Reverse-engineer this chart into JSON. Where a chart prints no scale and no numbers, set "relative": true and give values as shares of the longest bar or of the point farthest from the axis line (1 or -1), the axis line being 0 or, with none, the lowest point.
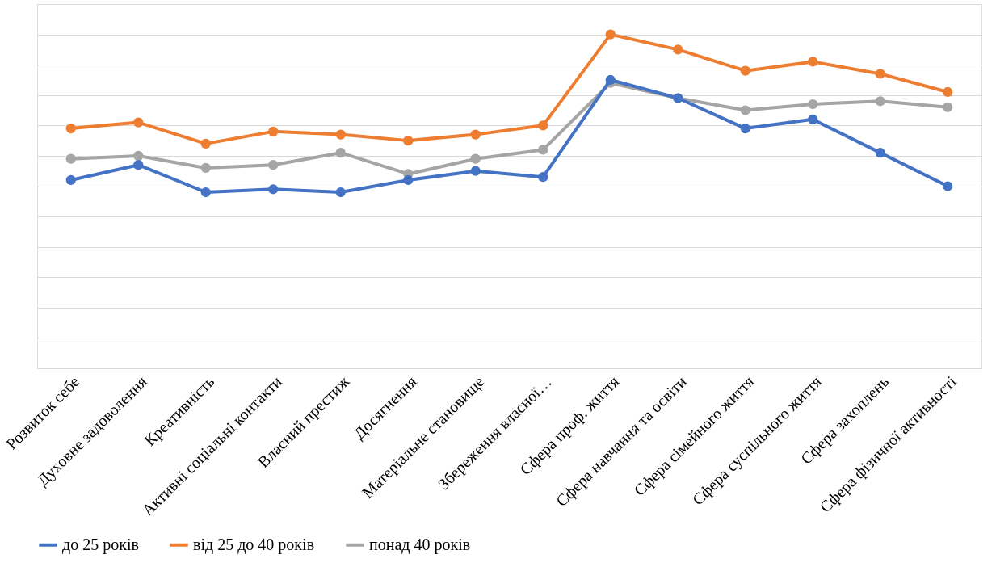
{
  "chart_data": {
    "type": "line",
    "relative": true,
    "grid": "y",
    "legend": "bottom",
    "marker": "circle",
    "line_style": "solid",
    "categories": [
      "Розвиток себе",
      "Духовне задоволення",
      "Креативність",
      "Активні соціальні контакти",
      "Власний престиж",
      "Досягнення",
      "Матеріальне становище",
      "Збереження власної…",
      "Сфера проф. життя",
      "Сфера навчання та освіти",
      "Сфера сімейного життя",
      "Сфера суспільного життя",
      "Сфера захоплень",
      "Сфера фізичної активності"
    ],
    "series": [
      {
        "name": "до 25 років",
        "color": "#4472c4",
        "values": [
          0.52,
          0.57,
          0.48,
          0.49,
          0.48,
          0.52,
          0.55,
          0.53,
          0.85,
          0.79,
          0.69,
          0.72,
          0.61,
          0.5
        ]
      },
      {
        "name": "від 25 до 40 років",
        "color": "#ed7d31",
        "values": [
          0.69,
          0.71,
          0.64,
          0.68,
          0.67,
          0.65,
          0.67,
          0.7,
          1,
          0.95,
          0.88,
          0.91,
          0.87,
          0.81
        ]
      },
      {
        "name": "понад 40 років",
        "color": "#a5a5a5",
        "values": [
          0.59,
          0.6,
          0.56,
          0.57,
          0.61,
          0.54,
          0.59,
          0.62,
          0.84,
          0.79,
          0.75,
          0.77,
          0.78,
          0.76
        ]
      }
    ]
  }
}
